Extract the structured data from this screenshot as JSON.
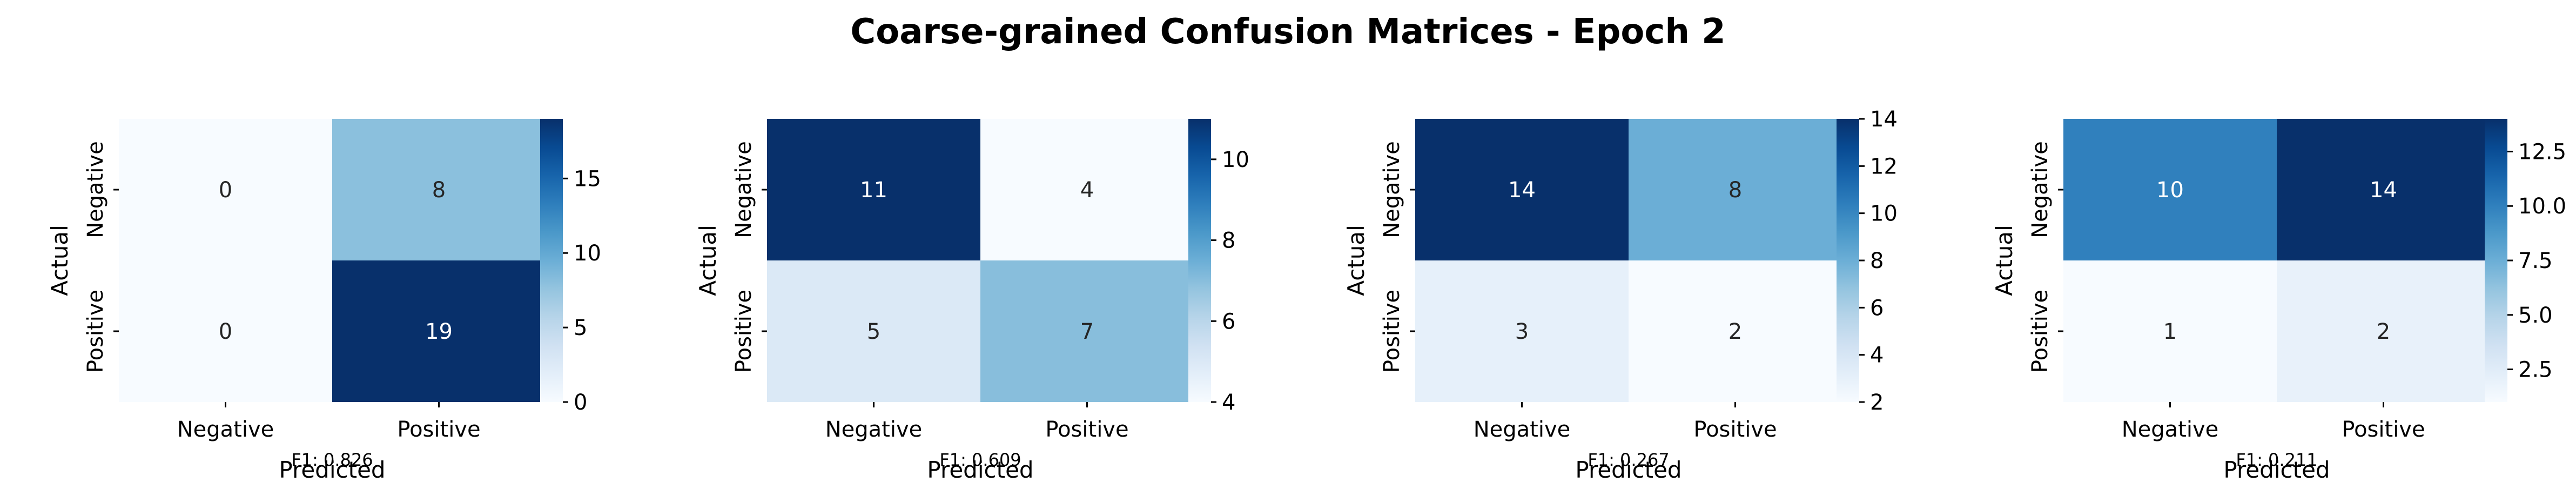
{
  "title": "Coarse-grained Confusion Matrices - Epoch 2",
  "colormap": {
    "name": "Blues",
    "low": "#f7fbff",
    "high": "#08306b"
  },
  "chart_data": [
    {
      "type": "heatmap",
      "title": "",
      "xlabel": "Predicted",
      "ylabel": "Actual",
      "x_categories": [
        "Negative",
        "Positive"
      ],
      "y_categories": [
        "Negative",
        "Positive"
      ],
      "matrix": [
        [
          0,
          8
        ],
        [
          0,
          19
        ]
      ],
      "colorbar": {
        "min": 0,
        "max": 19,
        "ticks": [
          0,
          5,
          10,
          15
        ]
      },
      "annotation": "F1: 0.826"
    },
    {
      "type": "heatmap",
      "title": "",
      "xlabel": "Predicted",
      "ylabel": "Actual",
      "x_categories": [
        "Negative",
        "Positive"
      ],
      "y_categories": [
        "Negative",
        "Positive"
      ],
      "matrix": [
        [
          11,
          4
        ],
        [
          5,
          7
        ]
      ],
      "colorbar": {
        "min": 4,
        "max": 11,
        "ticks": [
          4,
          6,
          8,
          10
        ]
      },
      "annotation": "F1: 0.609"
    },
    {
      "type": "heatmap",
      "title": "",
      "xlabel": "Predicted",
      "ylabel": "Actual",
      "x_categories": [
        "Negative",
        "Positive"
      ],
      "y_categories": [
        "Negative",
        "Positive"
      ],
      "matrix": [
        [
          14,
          8
        ],
        [
          3,
          2
        ]
      ],
      "colorbar": {
        "min": 2,
        "max": 14,
        "ticks": [
          2,
          4,
          6,
          8,
          10,
          12,
          14
        ]
      },
      "annotation": "F1: 0.267"
    },
    {
      "type": "heatmap",
      "title": "",
      "xlabel": "Predicted",
      "ylabel": "Actual",
      "x_categories": [
        "Negative",
        "Positive"
      ],
      "y_categories": [
        "Negative",
        "Positive"
      ],
      "matrix": [
        [
          10,
          14
        ],
        [
          1,
          2
        ]
      ],
      "colorbar": {
        "min": 1,
        "max": 14,
        "ticks": [
          2.5,
          5.0,
          7.5,
          10.0,
          12.5
        ],
        "tick_format": "1dp"
      },
      "annotation": "F1: 0.211"
    }
  ]
}
